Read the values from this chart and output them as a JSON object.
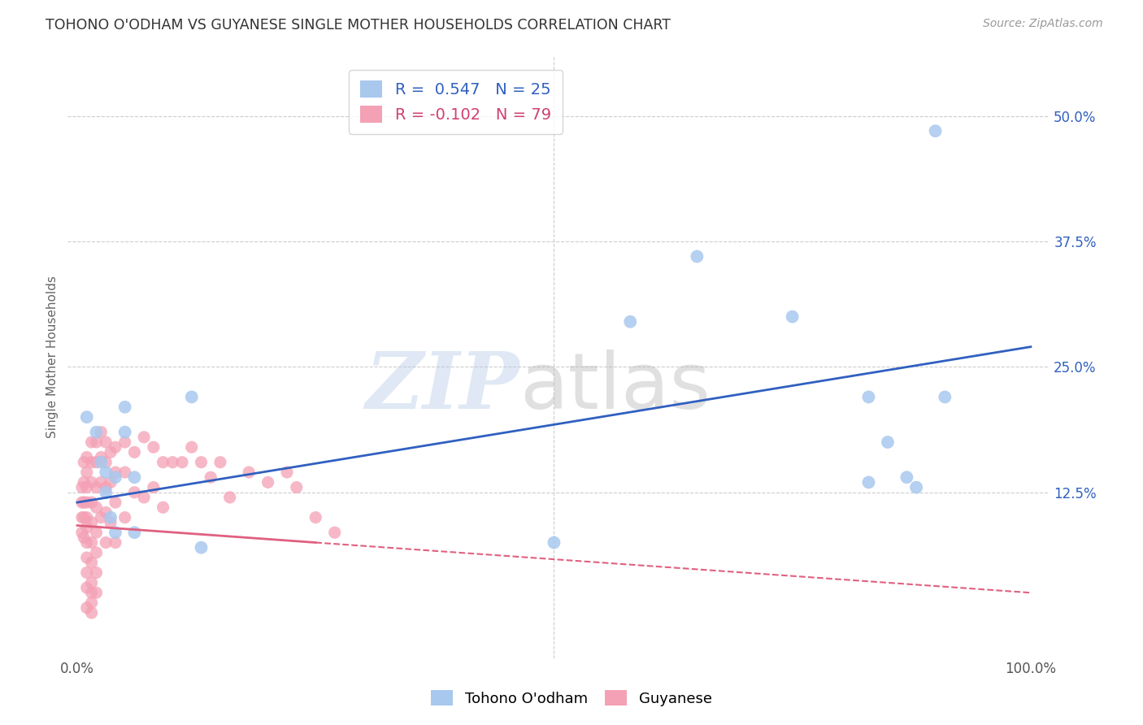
{
  "title": "TOHONO O'ODHAM VS GUYANESE SINGLE MOTHER HOUSEHOLDS CORRELATION CHART",
  "source": "Source: ZipAtlas.com",
  "ylabel": "Single Mother Households",
  "xlim": [
    -0.01,
    1.02
  ],
  "ylim": [
    -0.04,
    0.56
  ],
  "ytick_positions": [
    0.125,
    0.25,
    0.375,
    0.5
  ],
  "ytick_labels": [
    "12.5%",
    "25.0%",
    "37.5%",
    "50.0%"
  ],
  "blue_R": 0.547,
  "blue_N": 25,
  "pink_R": -0.102,
  "pink_N": 79,
  "blue_color": "#a8c8ee",
  "pink_color": "#f4a0b5",
  "blue_line_color": "#3060c0",
  "pink_line_color": "#e06080",
  "blue_line_start_x": 0.0,
  "blue_line_start_y": 0.115,
  "blue_line_end_x": 1.0,
  "blue_line_end_y": 0.27,
  "pink_line_solid_start_x": 0.0,
  "pink_line_solid_start_y": 0.092,
  "pink_line_solid_end_x": 0.25,
  "pink_line_solid_end_y": 0.075,
  "pink_line_dash_start_x": 0.25,
  "pink_line_dash_start_y": 0.075,
  "pink_line_dash_end_x": 1.0,
  "pink_line_dash_end_y": 0.025,
  "blue_points_x": [
    0.01,
    0.02,
    0.025,
    0.03,
    0.03,
    0.035,
    0.04,
    0.04,
    0.05,
    0.05,
    0.06,
    0.06,
    0.12,
    0.13,
    0.5,
    0.58,
    0.65,
    0.75,
    0.83,
    0.83,
    0.85,
    0.87,
    0.88,
    0.9,
    0.91
  ],
  "blue_points_y": [
    0.2,
    0.185,
    0.155,
    0.145,
    0.125,
    0.1,
    0.14,
    0.085,
    0.21,
    0.185,
    0.14,
    0.085,
    0.22,
    0.07,
    0.075,
    0.295,
    0.36,
    0.3,
    0.22,
    0.135,
    0.175,
    0.14,
    0.13,
    0.485,
    0.22
  ],
  "pink_points_x": [
    0.005,
    0.005,
    0.005,
    0.005,
    0.007,
    0.007,
    0.007,
    0.007,
    0.007,
    0.01,
    0.01,
    0.01,
    0.01,
    0.01,
    0.01,
    0.01,
    0.01,
    0.01,
    0.01,
    0.01,
    0.015,
    0.015,
    0.015,
    0.015,
    0.015,
    0.015,
    0.015,
    0.015,
    0.015,
    0.015,
    0.015,
    0.02,
    0.02,
    0.02,
    0.02,
    0.02,
    0.02,
    0.02,
    0.02,
    0.025,
    0.025,
    0.025,
    0.025,
    0.03,
    0.03,
    0.03,
    0.03,
    0.03,
    0.035,
    0.035,
    0.035,
    0.04,
    0.04,
    0.04,
    0.04,
    0.05,
    0.05,
    0.05,
    0.06,
    0.06,
    0.07,
    0.07,
    0.08,
    0.08,
    0.09,
    0.09,
    0.1,
    0.11,
    0.12,
    0.13,
    0.14,
    0.15,
    0.16,
    0.18,
    0.2,
    0.22,
    0.23,
    0.25,
    0.27
  ],
  "pink_points_y": [
    0.13,
    0.115,
    0.1,
    0.085,
    0.155,
    0.135,
    0.115,
    0.1,
    0.08,
    0.16,
    0.145,
    0.13,
    0.115,
    0.1,
    0.09,
    0.075,
    0.06,
    0.045,
    0.03,
    0.01,
    0.175,
    0.155,
    0.135,
    0.115,
    0.095,
    0.075,
    0.055,
    0.035,
    0.015,
    0.005,
    0.025,
    0.175,
    0.155,
    0.13,
    0.11,
    0.085,
    0.065,
    0.045,
    0.025,
    0.185,
    0.16,
    0.135,
    0.1,
    0.175,
    0.155,
    0.13,
    0.105,
    0.075,
    0.165,
    0.135,
    0.095,
    0.17,
    0.145,
    0.115,
    0.075,
    0.175,
    0.145,
    0.1,
    0.165,
    0.125,
    0.18,
    0.12,
    0.17,
    0.13,
    0.155,
    0.11,
    0.155,
    0.155,
    0.17,
    0.155,
    0.14,
    0.155,
    0.12,
    0.145,
    0.135,
    0.145,
    0.13,
    0.1,
    0.085
  ]
}
